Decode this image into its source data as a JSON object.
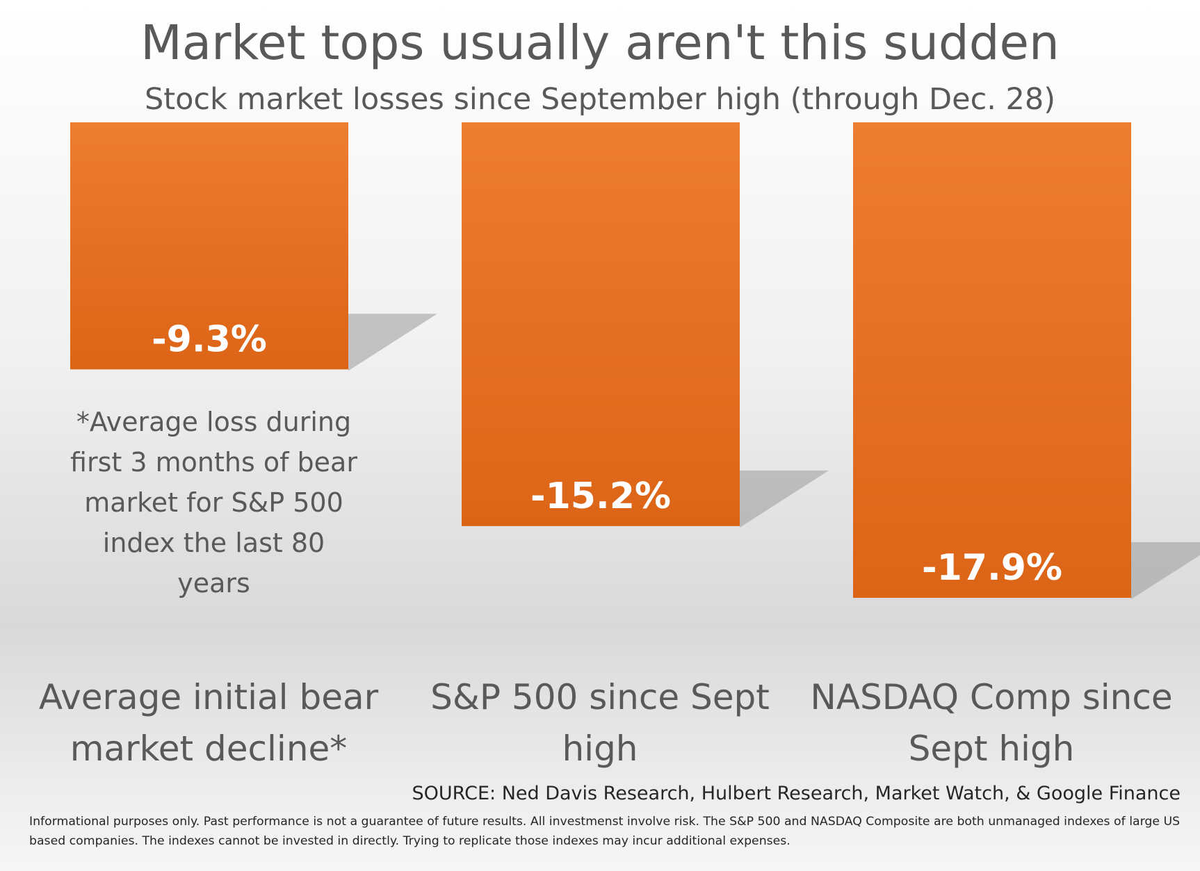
{
  "chart_data": {
    "type": "bar",
    "title": "Market tops usually aren't this sudden",
    "subtitle": "Stock market losses since September high (through Dec. 28)",
    "categories": [
      "Average initial bear market decline*",
      "S&P 500 since Sept high",
      "NASDAQ Comp since Sept high"
    ],
    "values": [
      -9.3,
      -15.2,
      -17.9
    ],
    "data_labels": [
      "-9.3%",
      "-15.2%",
      "-17.9%"
    ],
    "ylim": [
      -17.9,
      0
    ],
    "xlabel": "",
    "ylabel": "",
    "grid": false,
    "bar_color": "#E46C0A",
    "annotation": "*Average loss during first 3 months of bear market for S&P 500 index the last 80 years",
    "source": "SOURCE: Ned Davis Research, Hulbert Research, Market Watch, & Google Finance",
    "disclaimer": "Informational purposes only. Past performance is not a guarantee of future results. All investmenst involve risk. The S&P 500 and NASDAQ Composite are both unmanaged indexes of large US based companies. The indexes cannot be invested in directly. Trying to replicate those indexes may incur additional expenses."
  }
}
